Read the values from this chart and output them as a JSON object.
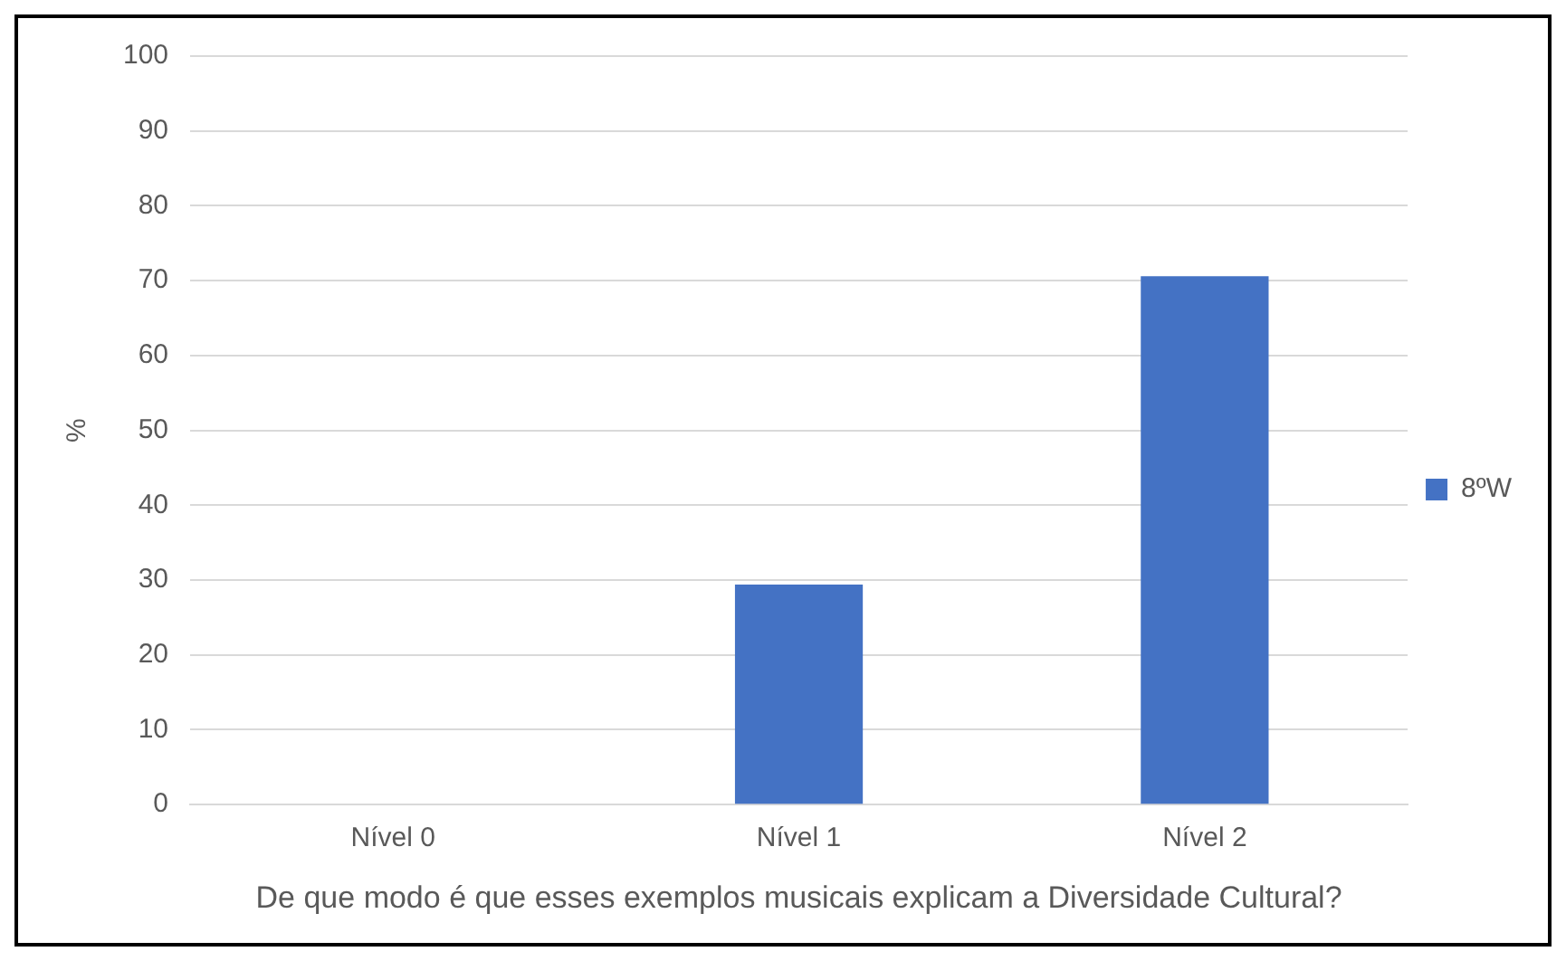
{
  "chart_data": {
    "type": "bar",
    "xlabel": "De que modo é que esses exemplos musicais explicam a Diversidade Cultural?",
    "ylabel": "%",
    "categories": [
      "Nível 0",
      "Nível 1",
      "Nível 2"
    ],
    "series": [
      {
        "name": "8ºW",
        "color": "#4472c4",
        "values": [
          0,
          29.4,
          70.6
        ]
      }
    ],
    "ylim": [
      0,
      100
    ],
    "yticks": [
      0,
      10,
      20,
      30,
      40,
      50,
      60,
      70,
      80,
      90,
      100
    ],
    "grid": "y",
    "legend": "right"
  }
}
